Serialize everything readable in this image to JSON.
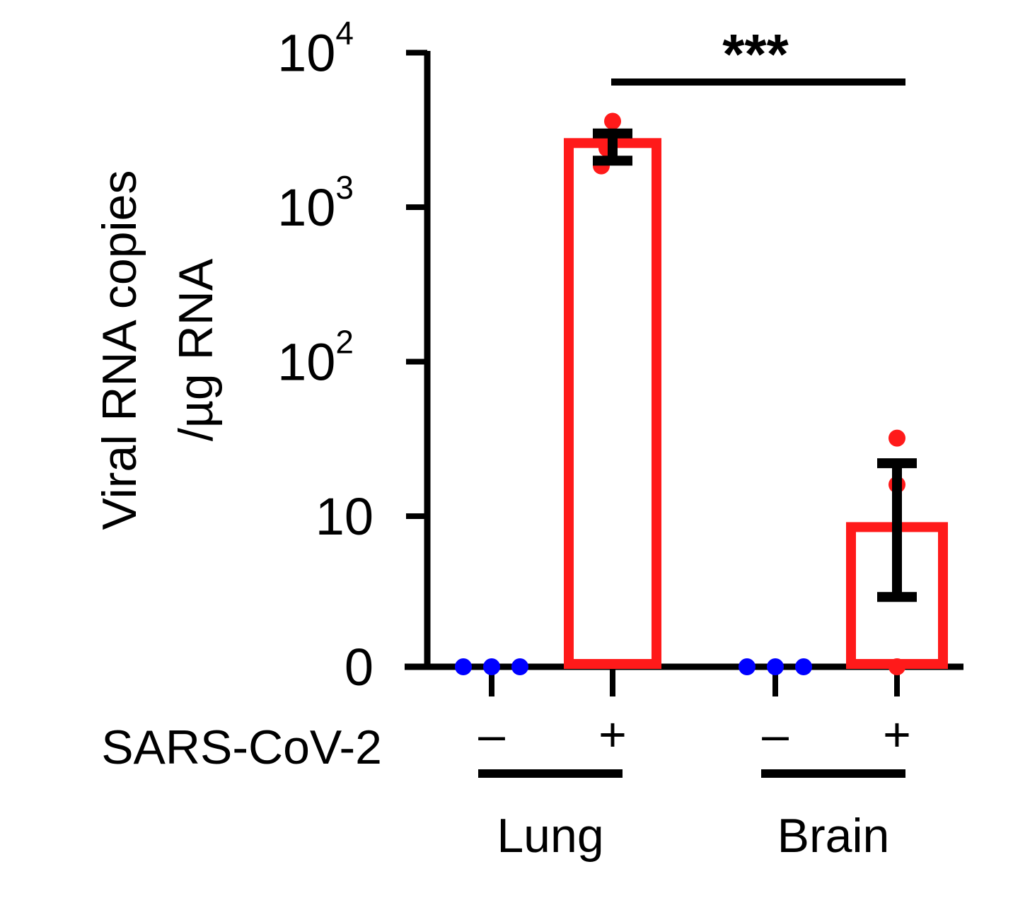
{
  "chart_data": {
    "type": "bar",
    "ylabel_line1": "Viral RNA copies",
    "ylabel_line2": "/µg RNA",
    "yscale": "log",
    "y_ticks": [
      {
        "value": 0,
        "base": "0",
        "exp": ""
      },
      {
        "value": 10,
        "base": "10",
        "exp": ""
      },
      {
        "value": 100,
        "base": "10",
        "exp": "2"
      },
      {
        "value": 1000,
        "base": "10",
        "exp": "3"
      },
      {
        "value": 10000,
        "base": "10",
        "exp": "4"
      }
    ],
    "factor_label": "SARS-CoV-2",
    "groups": [
      {
        "name": "Lung",
        "categories": [
          "–",
          "+"
        ]
      },
      {
        "name": "Brain",
        "categories": [
          "–",
          "+"
        ]
      }
    ],
    "bars": [
      {
        "group": "Lung",
        "condition": "–",
        "value": 0,
        "error_low": null,
        "error_high": null,
        "points": [
          0,
          0,
          0
        ],
        "point_color": "#0000ff"
      },
      {
        "group": "Lung",
        "condition": "+",
        "value": 2600,
        "error_low": 2000,
        "error_high": 3000,
        "points": [
          3600,
          2400,
          1850
        ],
        "point_color": "#ff1a1a"
      },
      {
        "group": "Brain",
        "condition": "–",
        "value": 0,
        "error_low": null,
        "error_high": null,
        "points": [
          0,
          0,
          0
        ],
        "point_color": "#0000ff"
      },
      {
        "group": "Brain",
        "condition": "+",
        "value": 8.5,
        "error_low": 3,
        "error_high": 22,
        "points": [
          32,
          16,
          0
        ],
        "point_color": "#ff1a1a"
      }
    ],
    "significance": {
      "label": "***",
      "from": "Lung +",
      "to": "Brain +"
    },
    "bar_edge_color": "#ff1a1a",
    "bar_fill_color": "#ffffff",
    "error_color": "#000000"
  }
}
